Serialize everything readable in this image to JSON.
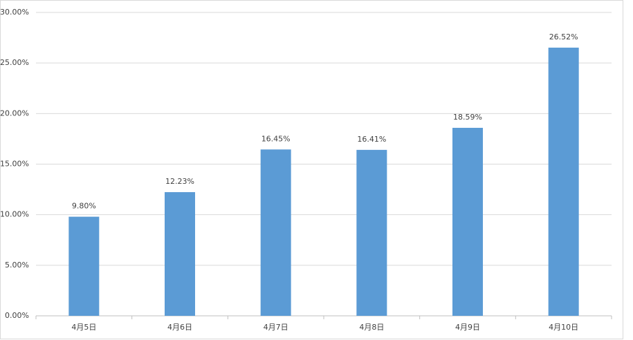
{
  "chart_data": {
    "type": "bar",
    "categories": [
      "4月5日",
      "4月6日",
      "4月7日",
      "4月8日",
      "4月9日",
      "4月10日"
    ],
    "values": [
      9.8,
      12.23,
      16.45,
      16.41,
      18.59,
      26.52
    ],
    "value_labels": [
      "9.80%",
      "12.23%",
      "16.45%",
      "16.41%",
      "18.59%",
      "26.52%"
    ],
    "color": "#5b9bd5",
    "ylim": [
      0,
      30
    ],
    "yticks": [
      {
        "value": 0,
        "label": "0.00%"
      },
      {
        "value": 5,
        "label": "5.00%"
      },
      {
        "value": 10,
        "label": "10.00%"
      },
      {
        "value": 15,
        "label": "15.00%"
      },
      {
        "value": 20,
        "label": "20.00%"
      },
      {
        "value": 25,
        "label": "25.00%"
      },
      {
        "value": 30,
        "label": "30.00%"
      }
    ],
    "grid": true
  }
}
